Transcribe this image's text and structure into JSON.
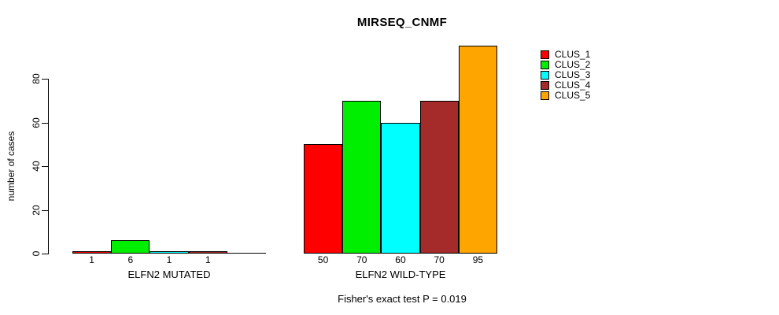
{
  "title": "MIRSEQ_CNMF",
  "footer": "Fisher's exact test P = 0.019",
  "chart_data": {
    "type": "bar",
    "title": "MIRSEQ_CNMF",
    "xlabel": "",
    "ylabel": "number of cases",
    "ylim": [
      0,
      95
    ],
    "yticks": [
      0,
      20,
      40,
      60,
      80
    ],
    "grid": false,
    "legend_position": "top-right-outside",
    "legend": [
      {
        "label": "CLUS_1",
        "color": "#FF0000"
      },
      {
        "label": "CLUS_2",
        "color": "#00EE00"
      },
      {
        "label": "CLUS_3",
        "color": "#00FFFF"
      },
      {
        "label": "CLUS_4",
        "color": "#A52A2A"
      },
      {
        "label": "CLUS_5",
        "color": "#FFA500"
      }
    ],
    "groups": [
      {
        "label": "ELFN2 MUTATED",
        "values": [
          1,
          6,
          1,
          1,
          0
        ],
        "value_labels": [
          "1",
          "6",
          "1",
          "1",
          ""
        ]
      },
      {
        "label": "ELFN2 WILD-TYPE",
        "values": [
          50,
          70,
          60,
          70,
          95
        ],
        "value_labels": [
          "50",
          "70",
          "60",
          "70",
          "95"
        ]
      }
    ],
    "annotation": "Fisher's exact test P = 0.019"
  },
  "colors": {
    "background": "#FFFFFF",
    "axis": "#000000",
    "bar_border": "#000000",
    "text": "#000000"
  }
}
